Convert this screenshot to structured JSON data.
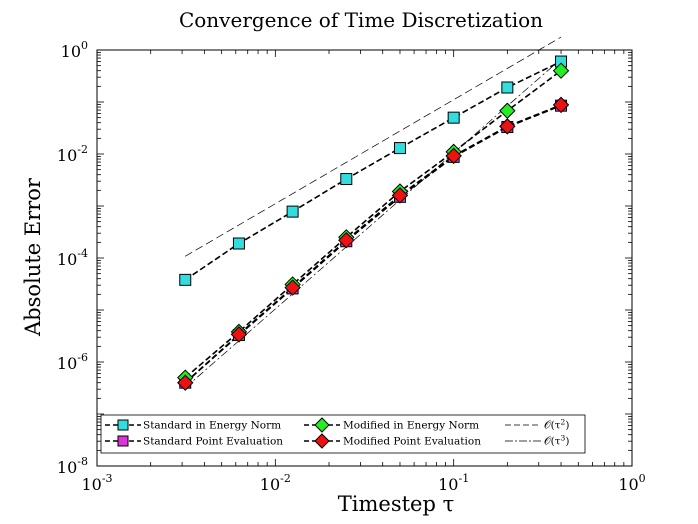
{
  "chart_data": {
    "type": "scatter",
    "title": "Convergence of Time Discretization",
    "xlabel": "Timestep τ",
    "ylabel": "Absolute Error",
    "xscale": "log",
    "yscale": "log",
    "xlim": [
      0.001,
      1
    ],
    "ylim": [
      1e-08,
      1
    ],
    "grid": false,
    "legend_position": "bottom",
    "x_ticks": [
      {
        "value": 0.001,
        "base": "10",
        "exp": "-3"
      },
      {
        "value": 0.01,
        "base": "10",
        "exp": "-2"
      },
      {
        "value": 0.1,
        "base": "10",
        "exp": "-1"
      },
      {
        "value": 1,
        "base": "10",
        "exp": "0"
      }
    ],
    "y_ticks": [
      {
        "value": 1e-08,
        "base": "10",
        "exp": "-8"
      },
      {
        "value": 1e-06,
        "base": "10",
        "exp": "-6"
      },
      {
        "value": 0.0001,
        "base": "10",
        "exp": "-4"
      },
      {
        "value": 0.01,
        "base": "10",
        "exp": "-2"
      },
      {
        "value": 1,
        "base": "10",
        "exp": "0"
      }
    ],
    "series": [
      {
        "name": "Standard in Energy Norm",
        "marker": "square",
        "color": "#33dddd",
        "x": [
          0.003125,
          0.00625,
          0.0125,
          0.025,
          0.05,
          0.1,
          0.2,
          0.4
        ],
        "y": [
          3.8e-05,
          0.00019,
          0.00078,
          0.0033,
          0.013,
          0.05,
          0.19,
          0.6
        ]
      },
      {
        "name": "Standard Point Evaluation",
        "marker": "square",
        "color": "#dd33dd",
        "x": [
          0.003125,
          0.00625,
          0.0125,
          0.025,
          0.05,
          0.1,
          0.2,
          0.4
        ],
        "y": [
          4e-07,
          3.3e-06,
          2.6e-05,
          0.00021,
          0.0015,
          0.0088,
          0.033,
          0.085
        ]
      },
      {
        "name": "Modified in Energy Norm",
        "marker": "diamond",
        "color": "#22ee22",
        "x": [
          0.003125,
          0.00625,
          0.0125,
          0.025,
          0.05,
          0.1,
          0.2,
          0.4
        ],
        "y": [
          5e-07,
          3.8e-06,
          3.1e-05,
          0.00025,
          0.0019,
          0.011,
          0.068,
          0.4
        ]
      },
      {
        "name": "Modified Point Evaluation",
        "marker": "diamond",
        "color": "#ee1111",
        "x": [
          0.003125,
          0.00625,
          0.0125,
          0.025,
          0.05,
          0.1,
          0.2,
          0.4
        ],
        "y": [
          4e-07,
          3.4e-06,
          2.7e-05,
          0.00022,
          0.0016,
          0.0092,
          0.034,
          0.088
        ]
      }
    ],
    "reference_lines": [
      {
        "name": "O(τ²)",
        "label_main": "𝒪(τ",
        "label_exp": "2",
        "label_end": ")",
        "style": "dashed",
        "x": [
          0.003125,
          0.4
        ],
        "y": [
          0.000108,
          1.77
        ]
      },
      {
        "name": "O(τ³)",
        "label_main": "𝒪(τ",
        "label_exp": "3",
        "label_end": ")",
        "style": "dashdot",
        "x": [
          0.003125,
          0.4
        ],
        "y": [
          3.2e-07,
          0.67
        ]
      }
    ]
  }
}
